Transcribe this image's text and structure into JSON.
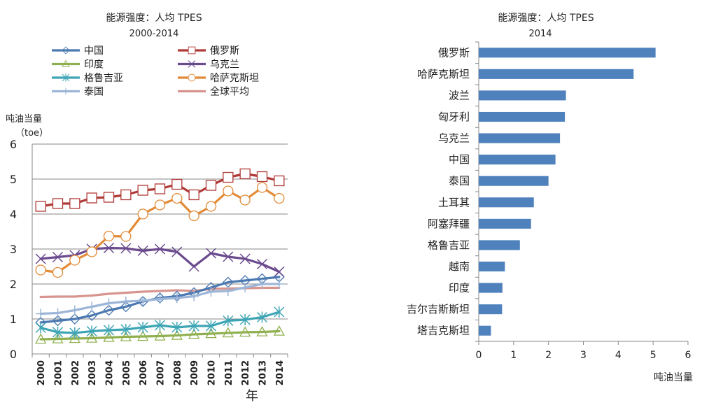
{
  "colors": {
    "china": "#4a78b0",
    "russia": "#b03a37",
    "india": "#90b050",
    "ukraine": "#6b4a8e",
    "kyrgyzstan": "#3ea5b5",
    "kazakhstan": "#e38a37",
    "thailand": "#9db6d8",
    "world": "#d8948f",
    "bar": "#4f81bd",
    "grid": "#878787",
    "axis": "#878787"
  },
  "chart_data": [
    {
      "type": "line",
      "title": "能源强度：人均 TPES",
      "subtitle": "2000-2014",
      "ylabel": "吨油当量",
      "ylabel_unit": "（toe）",
      "xlabel": "年",
      "ylim": [
        0,
        6
      ],
      "yticks": [
        "0",
        "1",
        "2",
        "3",
        "4",
        "5",
        "6"
      ],
      "x": [
        "2000",
        "2001",
        "2002",
        "2003",
        "2004",
        "2005",
        "2006",
        "2007",
        "2008",
        "2009",
        "2010",
        "2011",
        "2012",
        "2013",
        "2014"
      ],
      "grid": true,
      "legend_position": "top",
      "series": [
        {
          "key": "china",
          "name": "中国",
          "marker": "diamond",
          "values": [
            0.9,
            0.95,
            1.0,
            1.1,
            1.25,
            1.35,
            1.5,
            1.6,
            1.65,
            1.75,
            1.9,
            2.05,
            2.1,
            2.15,
            2.2
          ]
        },
        {
          "key": "russia",
          "name": "俄罗斯",
          "marker": "square",
          "values": [
            4.22,
            4.3,
            4.3,
            4.46,
            4.48,
            4.55,
            4.68,
            4.72,
            4.85,
            4.55,
            4.82,
            5.05,
            5.15,
            5.07,
            4.95
          ]
        },
        {
          "key": "india",
          "name": "印度",
          "marker": "triangle",
          "values": [
            0.42,
            0.43,
            0.44,
            0.45,
            0.47,
            0.49,
            0.5,
            0.51,
            0.53,
            0.56,
            0.58,
            0.6,
            0.62,
            0.63,
            0.65
          ]
        },
        {
          "key": "ukraine",
          "name": "乌克兰",
          "marker": "x",
          "values": [
            2.72,
            2.77,
            2.82,
            3.0,
            3.03,
            3.02,
            2.95,
            3.0,
            2.92,
            2.5,
            2.88,
            2.78,
            2.72,
            2.57,
            2.35
          ]
        },
        {
          "key": "kyrgyzstan",
          "name": "格鲁吉亚",
          "marker": "star",
          "values": [
            0.75,
            0.62,
            0.6,
            0.65,
            0.68,
            0.7,
            0.76,
            0.82,
            0.76,
            0.8,
            0.8,
            0.95,
            0.98,
            1.05,
            1.2
          ]
        },
        {
          "key": "kazakhstan",
          "name": "哈萨克斯坦",
          "marker": "circle",
          "values": [
            2.4,
            2.33,
            2.68,
            2.92,
            3.37,
            3.36,
            4.0,
            4.26,
            4.45,
            3.95,
            4.22,
            4.66,
            4.4,
            4.76,
            4.45
          ]
        },
        {
          "key": "thailand",
          "name": "泰国",
          "marker": "plus",
          "values": [
            1.15,
            1.17,
            1.25,
            1.35,
            1.45,
            1.5,
            1.52,
            1.57,
            1.6,
            1.65,
            1.78,
            1.8,
            1.9,
            2.0,
            2.0
          ]
        },
        {
          "key": "world",
          "name": "全球平均",
          "marker": "none",
          "values": [
            1.63,
            1.64,
            1.64,
            1.67,
            1.72,
            1.75,
            1.78,
            1.8,
            1.82,
            1.8,
            1.86,
            1.87,
            1.88,
            1.89,
            1.89
          ]
        }
      ]
    },
    {
      "type": "bar",
      "orientation": "horizontal",
      "title": "能源强度：人均 TPES",
      "subtitle": "2014",
      "xlabel": "吨油当量",
      "xlim": [
        0,
        6
      ],
      "xticks": [
        "0",
        "1",
        "2",
        "3",
        "4",
        "5",
        "6"
      ],
      "categories": [
        "俄罗斯",
        "哈萨克斯坦",
        "波兰",
        "匈牙利",
        "乌克兰",
        "中国",
        "泰国",
        "土耳其",
        "阿塞拜疆",
        "格鲁吉亚",
        "越南",
        "印度",
        "吉尔吉斯斯坦",
        "塔吉克斯坦"
      ],
      "values": [
        5.07,
        4.44,
        2.5,
        2.47,
        2.33,
        2.2,
        2.0,
        1.58,
        1.5,
        1.18,
        0.75,
        0.68,
        0.67,
        0.35
      ]
    }
  ]
}
